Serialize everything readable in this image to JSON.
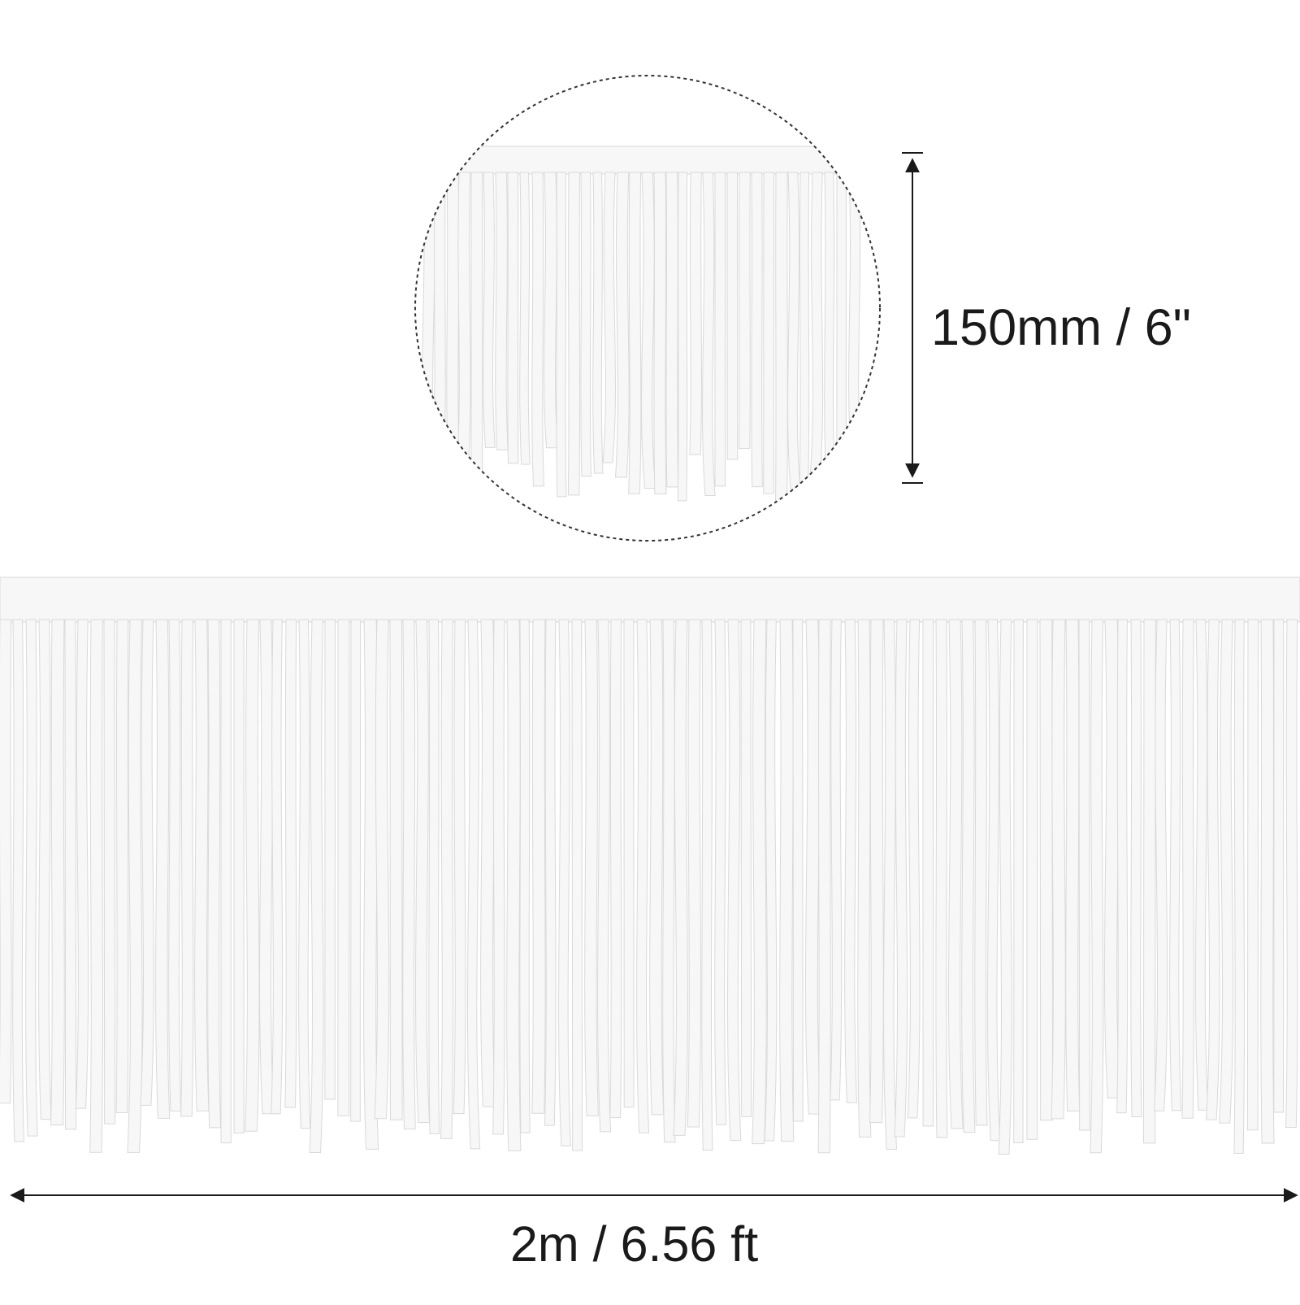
{
  "product": {
    "fringe_color": "#f7f7f7",
    "fringe_edge_color": "#d9d9d9"
  },
  "dimensions": {
    "height_label": "150mm / 6\"",
    "length_label": "2m / 6.56 ft"
  },
  "annotation_color": "#1a1a1a"
}
